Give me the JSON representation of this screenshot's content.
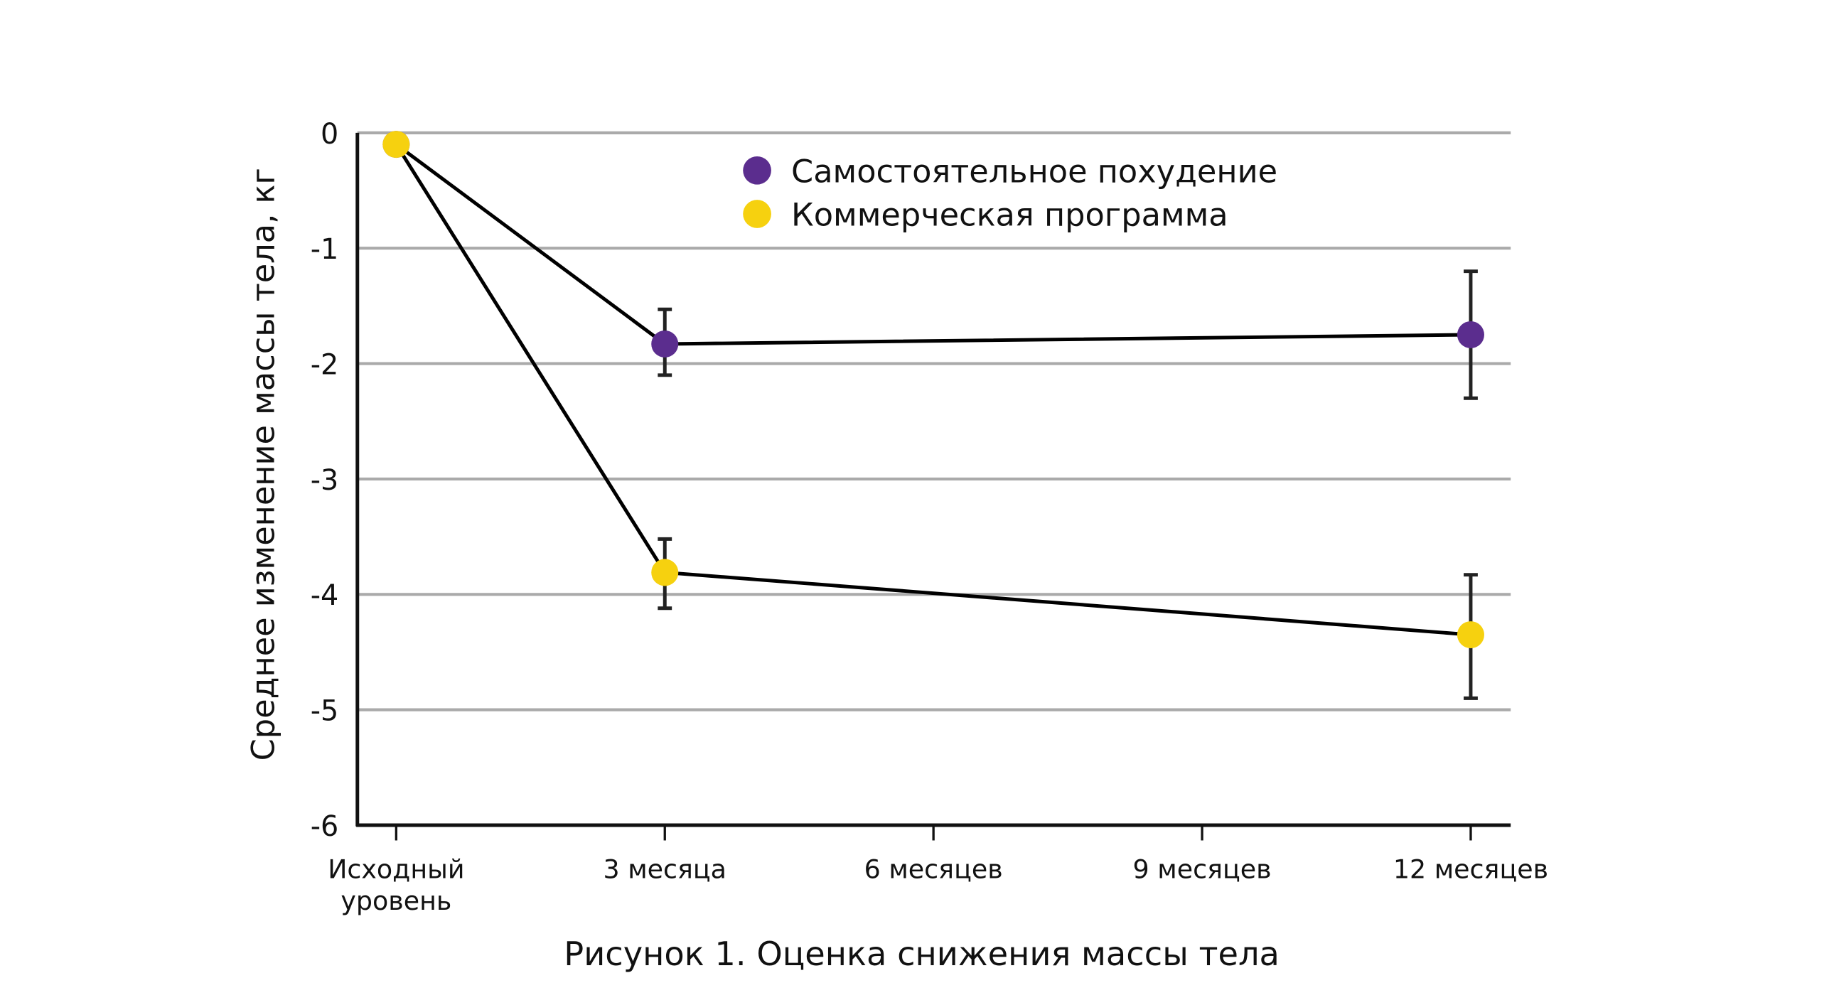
{
  "chart_data": {
    "type": "line",
    "title": "Рисунок 1. Оценка снижения массы тела",
    "xlabel": "",
    "ylabel": "Среднее изменение массы тела, кг",
    "ylim": [
      -6,
      0
    ],
    "yticks": [
      "0",
      "-1",
      "-2",
      "-3",
      "-4",
      "-5",
      "-6"
    ],
    "ytick_values": [
      0,
      -1,
      -2,
      -3,
      -4,
      -5,
      -6
    ],
    "categories": [
      [
        "Исходный",
        "уровень"
      ],
      [
        "3 месяца"
      ],
      [
        "6 месяцев"
      ],
      [
        "9 месяцев"
      ],
      [
        "12 месяцев"
      ]
    ],
    "category_index": [
      0,
      1,
      2,
      3,
      4
    ],
    "grid": true,
    "legend_placement": "top-center",
    "series": [
      {
        "name": "Самостоятельное похудение",
        "color": "#5b2d8e",
        "x": [
          0,
          1,
          4
        ],
        "values": [
          -0.1,
          -1.83,
          -1.75
        ],
        "err_low": [
          null,
          -2.1,
          -2.3
        ],
        "err_high": [
          null,
          -1.53,
          -1.2
        ]
      },
      {
        "name": "Коммерческая программа",
        "color": "#f6d10f",
        "x": [
          0,
          1,
          4
        ],
        "values": [
          -0.1,
          -3.81,
          -4.35
        ],
        "err_low": [
          null,
          -4.12,
          -4.9
        ],
        "err_high": [
          null,
          -3.52,
          -3.83
        ]
      }
    ]
  }
}
